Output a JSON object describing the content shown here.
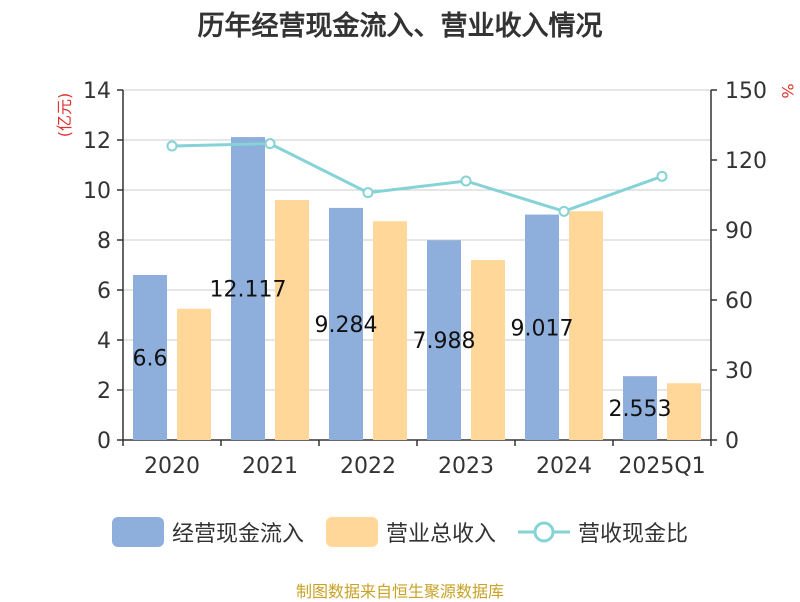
{
  "chart_data": {
    "type": "bar",
    "title": "历年经营现金流入、营业收入情况",
    "categories": [
      "2020",
      "2021",
      "2022",
      "2023",
      "2024",
      "2025Q1"
    ],
    "series": [
      {
        "name": "经营现金流入",
        "type": "bar",
        "axis": "left",
        "color": "#8eaedb",
        "values": [
          6.6,
          12.117,
          9.284,
          7.988,
          9.017,
          2.553
        ],
        "labels": [
          "6.6",
          "12.117",
          "9.284",
          "7.988",
          "9.017",
          "2.553"
        ]
      },
      {
        "name": "营业总收入",
        "type": "bar",
        "axis": "left",
        "color": "#ffd899",
        "values": [
          5.25,
          9.6,
          8.75,
          7.2,
          9.15,
          2.27
        ]
      },
      {
        "name": "营收现金比",
        "type": "line",
        "axis": "right",
        "color": "#85d3d6",
        "values": [
          126,
          127,
          106,
          111,
          98,
          113
        ]
      }
    ],
    "y_left": {
      "label": "(亿元)",
      "range": [
        0,
        14
      ],
      "ticks": [
        0,
        2,
        4,
        6,
        8,
        10,
        12,
        14
      ]
    },
    "y_right": {
      "label": "%",
      "range": [
        0,
        150
      ],
      "ticks": [
        0,
        30,
        60,
        90,
        120,
        150
      ]
    },
    "grid": true,
    "legend_position": "bottom"
  },
  "source": "制图数据来自恒生聚源数据库"
}
